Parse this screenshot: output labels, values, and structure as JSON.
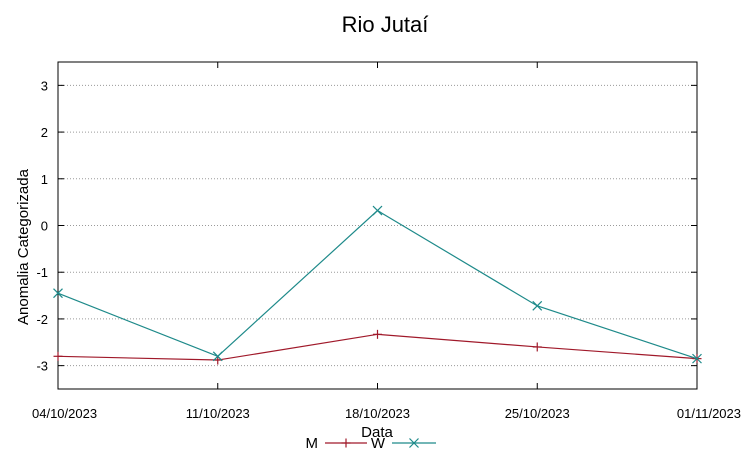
{
  "chart_data": {
    "type": "line",
    "title": "Rio Jutaí",
    "xlabel": "Data",
    "ylabel": "Anomalia Categorizada",
    "x": [
      "04/10/2023",
      "11/10/2023",
      "18/10/2023",
      "25/10/2023",
      "01/11/2023"
    ],
    "ylim": [
      -3.5,
      3.5
    ],
    "yticks": [
      "3",
      "2",
      "1",
      "0",
      "-1",
      "-2",
      "-3"
    ],
    "grid": true,
    "legend": "bottom-center",
    "series": [
      {
        "name": "M",
        "color": "#a0192a",
        "marker": "plus",
        "values": [
          -2.8,
          -2.88,
          -2.33,
          -2.6,
          -2.85
        ]
      },
      {
        "name": "W",
        "color": "#1e8a8a",
        "marker": "x",
        "values": [
          -1.45,
          -2.8,
          0.32,
          -1.72,
          -2.85
        ]
      }
    ]
  }
}
